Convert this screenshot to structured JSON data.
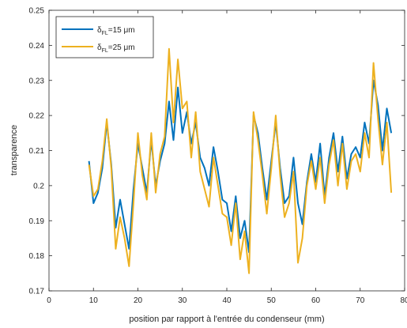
{
  "chart_data": {
    "type": "line",
    "title": "",
    "xlabel": "position par rapport à l'entrée du condenseur (mm)",
    "ylabel": "transparence",
    "xlim": [
      0,
      80
    ],
    "ylim": [
      0.17,
      0.25
    ],
    "xticks": [
      "0",
      "10",
      "20",
      "30",
      "40",
      "50",
      "60",
      "70",
      "80"
    ],
    "yticks": [
      "0.17",
      "0.18",
      "0.19",
      "0.2",
      "0.21",
      "0.22",
      "0.23",
      "0.24",
      "0.25"
    ],
    "grid": false,
    "legend_position": "top-left",
    "legend": [
      {
        "symbol": "δ",
        "subscript": "FL",
        "text": "=15 μm"
      },
      {
        "symbol": "δ",
        "subscript": "FL",
        "text": "=25 μm"
      }
    ],
    "series": [
      {
        "color": "#0072BD",
        "x": [
          9,
          10,
          11,
          12,
          13,
          14,
          15,
          16,
          17,
          18,
          19,
          20,
          21,
          22,
          23,
          24,
          25,
          26,
          27,
          28,
          29,
          30,
          31,
          32,
          33,
          34,
          35,
          36,
          37,
          38,
          39,
          40,
          41,
          42,
          43,
          44,
          45,
          46,
          47,
          48,
          49,
          50,
          51,
          52,
          53,
          54,
          55,
          56,
          57,
          58,
          59,
          60,
          61,
          62,
          63,
          64,
          65,
          66,
          67,
          68,
          69,
          70,
          71,
          72,
          73,
          74,
          75,
          76,
          77
        ],
        "values": [
          0.207,
          0.195,
          0.198,
          0.205,
          0.218,
          0.206,
          0.188,
          0.196,
          0.189,
          0.182,
          0.199,
          0.212,
          0.205,
          0.198,
          0.213,
          0.2,
          0.207,
          0.212,
          0.224,
          0.213,
          0.228,
          0.215,
          0.221,
          0.212,
          0.218,
          0.208,
          0.205,
          0.2,
          0.211,
          0.204,
          0.196,
          0.195,
          0.187,
          0.197,
          0.185,
          0.19,
          0.181,
          0.22,
          0.215,
          0.205,
          0.196,
          0.207,
          0.218,
          0.205,
          0.195,
          0.197,
          0.208,
          0.195,
          0.189,
          0.201,
          0.209,
          0.201,
          0.212,
          0.197,
          0.208,
          0.215,
          0.204,
          0.214,
          0.202,
          0.209,
          0.211,
          0.208,
          0.218,
          0.212,
          0.23,
          0.223,
          0.21,
          0.222,
          0.215
        ]
      },
      {
        "color": "#EDB120",
        "x": [
          9,
          10,
          11,
          12,
          13,
          14,
          15,
          16,
          17,
          18,
          19,
          20,
          21,
          22,
          23,
          24,
          25,
          26,
          27,
          28,
          29,
          30,
          31,
          32,
          33,
          34,
          35,
          36,
          37,
          38,
          39,
          40,
          41,
          42,
          43,
          44,
          45,
          46,
          47,
          48,
          49,
          50,
          51,
          52,
          53,
          54,
          55,
          56,
          57,
          58,
          59,
          60,
          61,
          62,
          63,
          64,
          65,
          66,
          67,
          68,
          69,
          70,
          71,
          72,
          73,
          74,
          75,
          76,
          77
        ],
        "values": [
          0.206,
          0.197,
          0.199,
          0.207,
          0.219,
          0.205,
          0.182,
          0.191,
          0.185,
          0.177,
          0.195,
          0.215,
          0.203,
          0.196,
          0.215,
          0.198,
          0.209,
          0.214,
          0.239,
          0.218,
          0.236,
          0.222,
          0.224,
          0.208,
          0.221,
          0.204,
          0.199,
          0.194,
          0.208,
          0.2,
          0.192,
          0.191,
          0.183,
          0.195,
          0.179,
          0.187,
          0.175,
          0.221,
          0.213,
          0.203,
          0.192,
          0.205,
          0.22,
          0.203,
          0.191,
          0.195,
          0.204,
          0.178,
          0.185,
          0.2,
          0.207,
          0.199,
          0.208,
          0.195,
          0.206,
          0.213,
          0.2,
          0.212,
          0.199,
          0.207,
          0.209,
          0.204,
          0.215,
          0.208,
          0.235,
          0.219,
          0.206,
          0.218,
          0.198
        ]
      }
    ]
  }
}
